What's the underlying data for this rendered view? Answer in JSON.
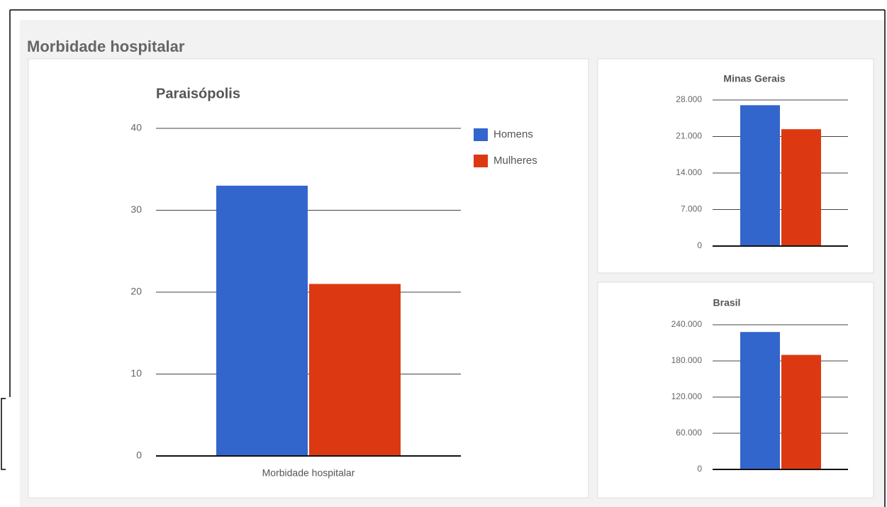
{
  "header": {
    "title": "Morbidade hospitalar"
  },
  "chart_data": [
    {
      "type": "bar",
      "title": "Paraisópolis",
      "categories": [
        "Morbidade hospitalar"
      ],
      "series": [
        {
          "name": "Homens",
          "color": "#3366cc",
          "values": [
            33
          ]
        },
        {
          "name": "Mulheres",
          "color": "#dc3912",
          "values": [
            21
          ]
        }
      ],
      "ylim": [
        0,
        40
      ],
      "yticks": [
        0,
        10,
        20,
        30,
        40
      ],
      "grid": true,
      "legend": "right"
    },
    {
      "type": "bar",
      "title": "Minas Gerais",
      "categories": [
        null
      ],
      "series": [
        {
          "color": "#3366cc",
          "values": [
            27000
          ]
        },
        {
          "color": "#dc3912",
          "values": [
            22400
          ]
        }
      ],
      "ylim": [
        0,
        28000
      ],
      "yticks": [
        0,
        {
          "value": 7000,
          "label": "7.000"
        },
        {
          "value": 14000,
          "label": "14.000"
        },
        {
          "value": 21000,
          "label": "21.000"
        },
        {
          "value": 28000,
          "label": "28.000"
        }
      ],
      "grid": true
    },
    {
      "type": "bar",
      "title": "Brasil",
      "categories": [
        null
      ],
      "series": [
        {
          "color": "#3366cc",
          "values": [
            228000
          ]
        },
        {
          "color": "#dc3912",
          "values": [
            190000
          ]
        }
      ],
      "ylim": [
        0,
        240000
      ],
      "yticks": [
        0,
        {
          "value": 60000,
          "label": "60.000"
        },
        {
          "value": 120000,
          "label": "120.000"
        },
        {
          "value": 180000,
          "label": "180.000"
        },
        {
          "value": 240000,
          "label": "240.000"
        }
      ],
      "grid": true
    }
  ]
}
